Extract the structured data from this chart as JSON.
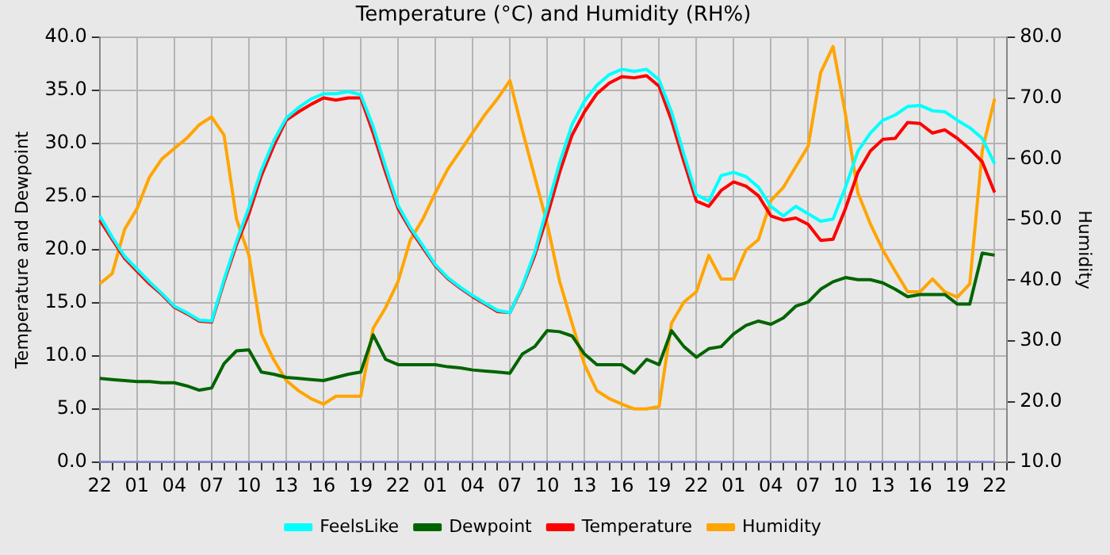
{
  "chart_data": {
    "type": "line",
    "title": "Temperature (°C) and Humidity (RH%)",
    "ylabel": "Temperature and Dewpoint",
    "y2label": "Humidity",
    "categories": [
      "22",
      null,
      null,
      "01",
      null,
      null,
      "04",
      null,
      null,
      "07",
      null,
      null,
      "10",
      null,
      null,
      "13",
      null,
      null,
      "16",
      null,
      null,
      "19",
      null,
      null,
      "22",
      null,
      null,
      "01",
      null,
      null,
      "04",
      null,
      null,
      "07",
      null,
      null,
      "10",
      null,
      null,
      "13",
      null,
      null,
      "16",
      null,
      null,
      "19",
      null,
      null,
      "22",
      null,
      null,
      "01",
      null,
      null,
      "04",
      null,
      null,
      "07",
      null,
      null,
      "10",
      null,
      null,
      "13",
      null,
      null,
      "16",
      null,
      null,
      "19",
      null,
      null,
      "22",
      null
    ],
    "ylim": [
      0,
      40
    ],
    "yticks": [
      {
        "value": 0,
        "label": "0.0"
      },
      {
        "value": 5,
        "label": "5.0"
      },
      {
        "value": 10,
        "label": "10.0"
      },
      {
        "value": 15,
        "label": "15.0"
      },
      {
        "value": 20,
        "label": "20.0"
      },
      {
        "value": 25,
        "label": "25.0"
      },
      {
        "value": 30,
        "label": "30.0"
      },
      {
        "value": 35,
        "label": "35.0"
      },
      {
        "value": 40,
        "label": "40.0"
      }
    ],
    "y2lim": [
      10,
      80
    ],
    "y2ticks": [
      {
        "value": 10,
        "label": "10.0"
      },
      {
        "value": 20,
        "label": "20.0"
      },
      {
        "value": 30,
        "label": "30.0"
      },
      {
        "value": 40,
        "label": "40.0"
      },
      {
        "value": 50,
        "label": "50.0"
      },
      {
        "value": 60,
        "label": "60.0"
      },
      {
        "value": 70,
        "label": "70.0"
      },
      {
        "value": 80,
        "label": "80.0"
      }
    ],
    "grid": true,
    "legend": "bottom",
    "marker": "none",
    "line_style": "solid",
    "series": [
      {
        "name": "FeelsLike",
        "color": "#00ffff",
        "values": [
          23.2,
          21.2,
          19.4,
          18.2,
          17,
          15.9,
          14.7,
          14.1,
          13.4,
          13.3,
          17.2,
          20.8,
          24,
          27.5,
          30.3,
          32.4,
          33.4,
          34.2,
          34.7,
          34.7,
          34.9,
          34.6,
          31.6,
          27.8,
          24.2,
          22.1,
          20.4,
          18.6,
          17.4,
          16.5,
          15.7,
          15,
          14.3,
          14.1,
          16.6,
          19.8,
          24,
          28.2,
          31.8,
          34,
          35.5,
          36.5,
          37,
          36.8,
          37,
          36,
          33,
          29,
          25.2,
          24.6,
          27,
          27.3,
          26.9,
          25.9,
          24.1,
          23.2,
          24.1,
          23.4,
          22.7,
          22.9,
          25.9,
          29.3,
          31,
          32.2,
          32.7,
          33.5,
          33.6,
          33.1,
          33,
          32.2,
          31.5,
          30.5,
          28.1,
          null
        ]
      },
      {
        "name": "Dewpoint",
        "color": "#006400",
        "values": [
          7.9,
          7.8,
          7.7,
          7.6,
          7.6,
          7.5,
          7.5,
          7.2,
          6.8,
          7,
          9.3,
          10.5,
          10.6,
          8.5,
          8.3,
          8,
          7.9,
          7.8,
          7.7,
          8,
          8.3,
          8.5,
          12,
          9.7,
          9.2,
          9.2,
          9.2,
          9.2,
          9,
          8.9,
          8.7,
          8.6,
          8.5,
          8.4,
          10.2,
          10.9,
          12.4,
          12.3,
          11.9,
          10.2,
          9.2,
          9.2,
          9.2,
          8.4,
          9.7,
          9.2,
          12.4,
          10.9,
          9.9,
          10.7,
          10.9,
          12.1,
          12.9,
          13.3,
          13,
          13.6,
          14.7,
          15.1,
          16.3,
          17,
          17.4,
          17.2,
          17.2,
          16.9,
          16.3,
          15.6,
          15.8,
          15.8,
          15.8,
          14.9,
          14.9,
          19.7,
          19.5,
          null
        ]
      },
      {
        "name": "Temperature",
        "color": "#ff0000",
        "values": [
          22.8,
          21,
          19.2,
          18,
          16.8,
          15.8,
          14.6,
          14,
          13.3,
          13.2,
          17,
          20.5,
          23.4,
          27,
          29.8,
          32.2,
          33,
          33.7,
          34.3,
          34.1,
          34.3,
          34.3,
          31,
          27.3,
          23.9,
          21.9,
          20.2,
          18.5,
          17.3,
          16.4,
          15.6,
          14.9,
          14.2,
          14.1,
          16.5,
          19.5,
          23.2,
          27.3,
          30.8,
          33,
          34.7,
          35.7,
          36.3,
          36.2,
          36.4,
          35.4,
          32.2,
          28.3,
          24.6,
          24.1,
          25.6,
          26.4,
          26,
          25.1,
          23.2,
          22.8,
          23,
          22.4,
          20.9,
          21,
          23.9,
          27.3,
          29.3,
          30.4,
          30.5,
          32,
          31.9,
          31,
          31.3,
          30.5,
          29.5,
          28.3,
          25.4,
          null
        ]
      },
      {
        "name": "Humidity",
        "color": "#ffa500",
        "axis": "y2",
        "values": [
          39.4,
          41.1,
          48.4,
          51.8,
          57,
          60,
          61.7,
          63.4,
          65.6,
          66.9,
          63.9,
          50.1,
          44.1,
          31.2,
          26.9,
          23.5,
          21.8,
          20.5,
          19.6,
          20.9,
          20.9,
          20.9,
          32.1,
          35.5,
          39.8,
          46.7,
          50.1,
          54.4,
          58.3,
          61.3,
          64.3,
          67.3,
          69.9,
          72.9,
          64.7,
          57,
          49.3,
          39.8,
          32.9,
          26.1,
          21.8,
          20.5,
          19.6,
          18.8,
          18.8,
          19.2,
          32.9,
          36.4,
          38.1,
          44.1,
          40.2,
          40.2,
          45,
          46.7,
          53.1,
          55.3,
          58.7,
          62.1,
          74.2,
          78.5,
          67.3,
          54.4,
          49.3,
          45,
          41.5,
          38.1,
          38.1,
          40.2,
          38.1,
          37.2,
          39.4,
          61.3,
          69.9,
          null
        ]
      },
      {
        "color": "#8080e0",
        "values": [
          0,
          0,
          0,
          0,
          0,
          0,
          0,
          0,
          0,
          0,
          0,
          0,
          0,
          0,
          0,
          0,
          0,
          0,
          0,
          0,
          0,
          0,
          0,
          0,
          0,
          0,
          0,
          0,
          0,
          0,
          0,
          0,
          0,
          0,
          0,
          0,
          0,
          0,
          0,
          0,
          0,
          0,
          0,
          0,
          0,
          0,
          0,
          0,
          0,
          0,
          0,
          0,
          0,
          0,
          0,
          0,
          0,
          0,
          0,
          0,
          0,
          0,
          0,
          0,
          0,
          0,
          0,
          0,
          0,
          0,
          0,
          0,
          0,
          null
        ]
      }
    ]
  }
}
